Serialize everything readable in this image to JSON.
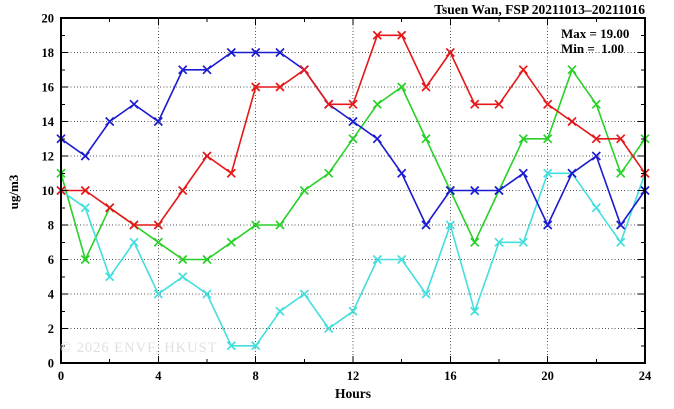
{
  "header": {
    "title": "Tsuen Wan, FSP 20211013–20211016"
  },
  "legend": {
    "max_line": "Max = 19.00",
    "min_line": "Min =  1.00"
  },
  "watermark": "© 2026 ENVF, HKUST",
  "chart_data": {
    "type": "line",
    "title": "Tsuen Wan, FSP 20211013–20211016",
    "xlabel": "Hours",
    "ylabel": "ug/m3",
    "xlim": [
      0,
      24
    ],
    "ylim": [
      0,
      20
    ],
    "grid": "on",
    "legend_position": "top-right-inside",
    "stats": {
      "max": 19.0,
      "min": 1.0
    },
    "marker": "x",
    "x_tick_labels": [
      "0",
      "4",
      "8",
      "12",
      "16",
      "20",
      "24"
    ],
    "x_major_ticks": [
      0,
      4,
      8,
      12,
      16,
      20,
      24
    ],
    "x_minor_ticks": [
      2,
      6,
      10,
      14,
      18,
      22
    ],
    "y_tick_labels": [
      "0",
      "2",
      "4",
      "6",
      "8",
      "10",
      "12",
      "14",
      "16",
      "18",
      "20"
    ],
    "y_major_ticks": [
      0,
      2,
      4,
      6,
      8,
      10,
      12,
      14,
      16,
      18,
      20
    ],
    "y_minor_ticks": [
      1,
      3,
      5,
      7,
      9,
      11,
      13,
      15,
      17,
      19
    ],
    "x": [
      0,
      1,
      2,
      3,
      4,
      5,
      6,
      7,
      8,
      9,
      10,
      11,
      12,
      13,
      14,
      15,
      16,
      17,
      18,
      19,
      20,
      21,
      22,
      23,
      24
    ],
    "series": [
      {
        "name": "green-series",
        "color": "#28d028",
        "values": [
          11,
          6,
          9,
          8,
          7,
          6,
          6,
          7,
          8,
          8,
          10,
          11,
          13,
          15,
          16,
          13,
          10,
          7,
          10,
          13,
          13,
          17,
          15,
          11,
          13
        ]
      },
      {
        "name": "cyan-series",
        "color": "#45dede",
        "values": [
          10,
          9,
          5,
          7,
          4,
          5,
          4,
          1,
          1,
          3,
          4,
          2,
          3,
          6,
          6,
          4,
          8,
          3,
          7,
          7,
          11,
          11,
          9,
          7,
          11
        ]
      },
      {
        "name": "blue-series",
        "color": "#1a1ad1",
        "values": [
          13,
          12,
          14,
          15,
          14,
          17,
          17,
          18,
          18,
          18,
          17,
          15,
          14,
          13,
          11,
          8,
          10,
          10,
          10,
          11,
          8,
          11,
          12,
          8,
          10
        ]
      },
      {
        "name": "red-series",
        "color": "#e61717",
        "values": [
          10,
          10,
          9,
          8,
          8,
          10,
          12,
          11,
          16,
          16,
          17,
          15,
          15,
          19,
          19,
          16,
          18,
          15,
          15,
          17,
          15,
          14,
          13,
          13,
          11
        ]
      }
    ],
    "colors": {
      "frame": "#000000",
      "gridline": "#555555",
      "watermark": "#e0e0e0"
    }
  }
}
